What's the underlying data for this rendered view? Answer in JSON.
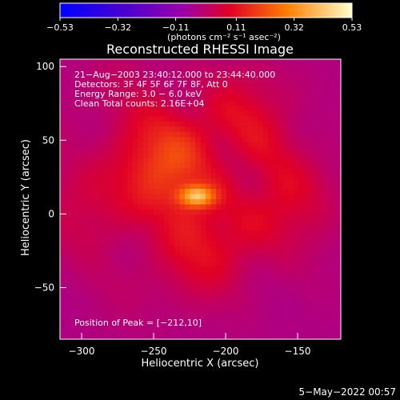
{
  "chart_data": {
    "type": "heatmap",
    "title": "Reconstructed RHESSI Image",
    "xlabel": "Heliocentric X (arcsec)",
    "ylabel": "Heliocentric Y (arcsec)",
    "xlim": [
      -315,
      -120
    ],
    "ylim": [
      -85,
      105
    ],
    "xticks": [
      -300,
      -250,
      -200,
      -150
    ],
    "yticks": [
      -50,
      0,
      50,
      100
    ],
    "tick_labels_x": [
      "−300",
      "−250",
      "−200",
      "−150"
    ],
    "tick_labels_y": [
      "−50",
      "0",
      "50",
      "100"
    ],
    "colorbar": {
      "label": "(photons cm⁻² s⁻¹ asec⁻²)",
      "min": -0.53,
      "max": 0.53,
      "ticks": [
        "−0.53",
        "−0.32",
        "−0.11",
        "0.11",
        "0.32",
        "0.53"
      ],
      "tick_values": [
        -0.53,
        -0.32,
        -0.11,
        0.11,
        0.32,
        0.53
      ]
    },
    "annotations": [
      "21−Aug−2003 23:40:12.000 to 23:44:40.000",
      "Detectors: 3F 4F 5F 6F 7F 8F, Att 0",
      "Energy Range: 3.0 − 6.0 keV",
      "Clean    Total counts: 2.16E+04"
    ],
    "peak": {
      "label": "Position of Peak = [−212,10]",
      "x": -212,
      "y": 10
    },
    "timestamp": "5−May−2022 00:57",
    "image_field": {
      "background_value": -0.04,
      "source_center": [
        -220,
        12
      ],
      "source_peak_value": 0.53,
      "disk_center": [
        -222,
        22
      ],
      "disk_value": 0.18
    }
  }
}
